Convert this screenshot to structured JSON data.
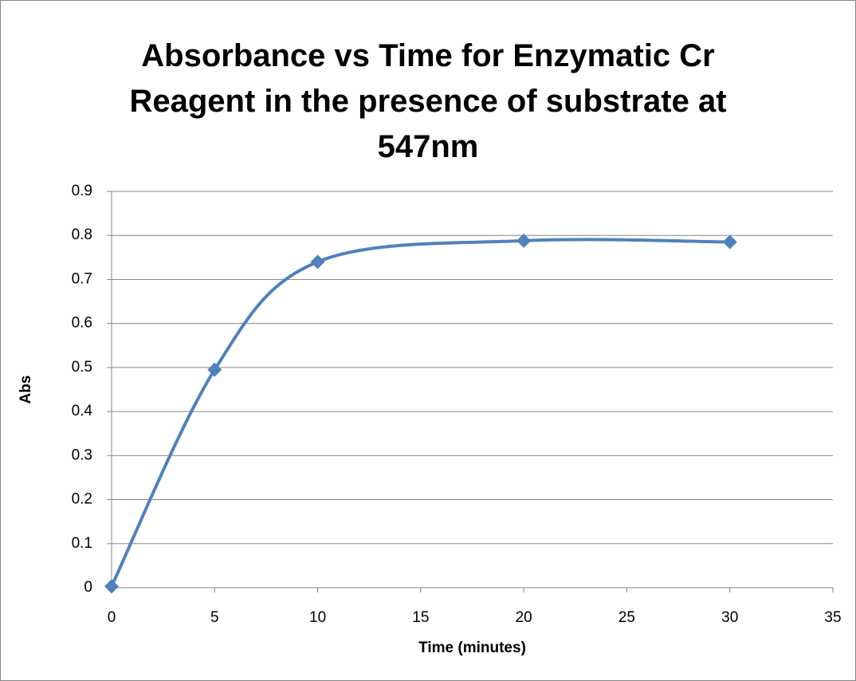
{
  "chart_data": {
    "type": "scatter",
    "title": "Absorbance vs Time for Enzymatic Cr Reagent in the presence of substrate at 547nm",
    "x_label": "Time (minutes)",
    "y_label": "Abs",
    "x": [
      0,
      5,
      10,
      20,
      30
    ],
    "series": [
      {
        "name": "Abs",
        "color": "#4f81bd",
        "values": [
          0.003,
          0.495,
          0.74,
          0.788,
          0.785
        ]
      }
    ],
    "xlim": [
      0,
      35
    ],
    "xticks": [
      0,
      5,
      10,
      15,
      20,
      25,
      30,
      35
    ],
    "ylim": [
      0,
      0.9
    ],
    "yticks": [
      0,
      0.1,
      0.2,
      0.3,
      0.4,
      0.5,
      0.6,
      0.7,
      0.8,
      0.9
    ],
    "grid": true,
    "smooth": true,
    "marker": "diamond"
  }
}
